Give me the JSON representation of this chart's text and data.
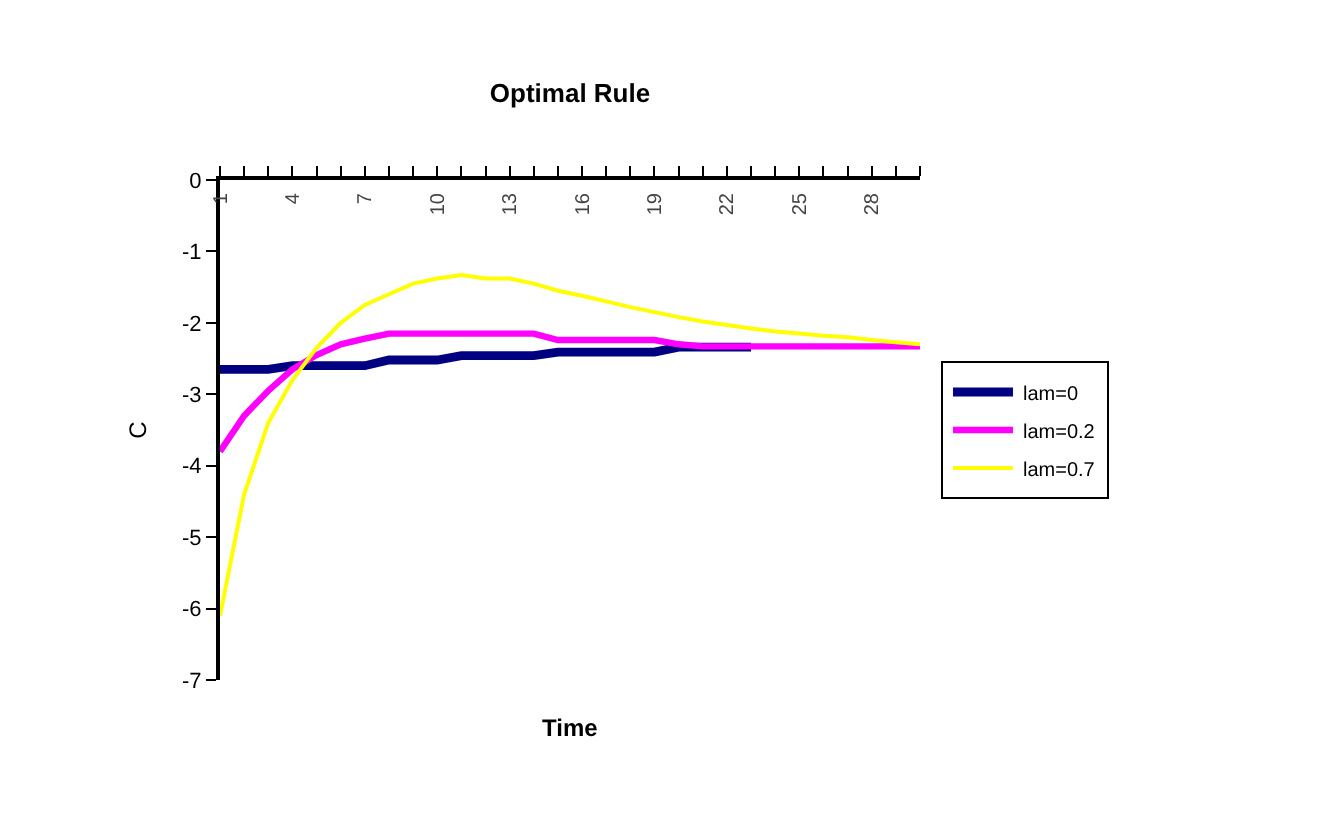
{
  "chart_data": {
    "type": "line",
    "title": "Optimal Rule",
    "xlabel": "Time",
    "ylabel": "C",
    "categories": [
      "1",
      null,
      null,
      "4",
      null,
      null,
      "7",
      null,
      null,
      "10",
      null,
      null,
      "13",
      null,
      null,
      "16",
      null,
      null,
      "19",
      null,
      null,
      "22",
      null,
      null,
      "25",
      null,
      null,
      "28",
      null,
      null
    ],
    "series": [
      {
        "name": "lam=0",
        "color": "#000080",
        "values": [
          -2.65,
          -2.65,
          -2.65,
          -2.6,
          -2.6,
          -2.6,
          -2.6,
          -2.52,
          -2.52,
          -2.52,
          -2.46,
          -2.46,
          -2.46,
          -2.46,
          -2.41,
          -2.41,
          -2.41,
          -2.41,
          -2.41,
          -2.34,
          -2.34,
          -2.34,
          -2.34,
          null,
          null,
          null,
          null,
          null,
          null,
          null
        ]
      },
      {
        "name": "lam=0.2",
        "color": "#ff00ff",
        "values": [
          -3.8,
          -3.3,
          -2.95,
          -2.65,
          -2.45,
          -2.3,
          -2.22,
          -2.15,
          -2.15,
          -2.15,
          -2.15,
          -2.15,
          -2.15,
          -2.15,
          -2.24,
          -2.24,
          -2.24,
          -2.24,
          -2.24,
          -2.3,
          -2.33,
          -2.33,
          -2.33,
          -2.33,
          -2.33,
          -2.33,
          -2.33,
          -2.33,
          -2.33,
          -2.33
        ]
      },
      {
        "name": "lam=0.7",
        "color": "#ffff00",
        "values": [
          -6.1,
          -4.4,
          -3.4,
          -2.8,
          -2.35,
          -2.0,
          -1.75,
          -1.6,
          -1.45,
          -1.38,
          -1.33,
          -1.38,
          -1.38,
          -1.45,
          -1.55,
          -1.62,
          -1.7,
          -1.78,
          -1.85,
          -1.92,
          -1.98,
          -2.03,
          -2.08,
          -2.12,
          -2.15,
          -2.18,
          -2.2,
          -2.24,
          -2.27,
          -2.3
        ]
      }
    ],
    "ylim": [
      -7,
      0
    ],
    "yticks": [
      -7,
      -6,
      -5,
      -4,
      -3,
      -2,
      -1,
      0
    ],
    "legend": "right",
    "marker": "none",
    "line_style": "solid"
  }
}
